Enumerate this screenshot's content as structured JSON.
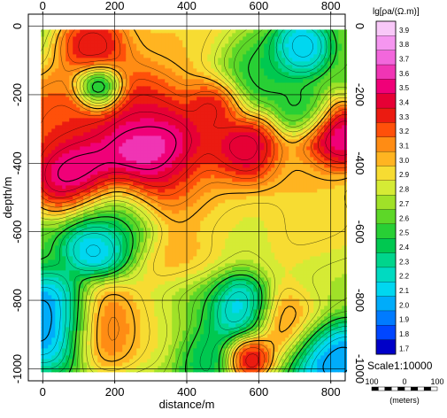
{
  "chart_data": {
    "type": "heatmap",
    "title": "",
    "xlabel": "distance/m",
    "ylabel": "depth/m",
    "x_ticks": [
      0,
      200,
      400,
      600,
      800
    ],
    "y_ticks": [
      0,
      -200,
      -400,
      -600,
      -800,
      -1000
    ],
    "xlim": [
      -40,
      840
    ],
    "ylim": [
      -1035,
      35
    ],
    "grid": true,
    "data_extent": {
      "x": [
        -5,
        845
      ],
      "y": [
        -10,
        -1010
      ]
    },
    "colorbar": {
      "title": "lg[ρa/(Ω.m)]",
      "min": 1.7,
      "max": 3.9,
      "step": 0.1,
      "labels": [
        "3.9",
        "3.8",
        "3.7",
        "3.6",
        "3.5",
        "3.4",
        "3.3",
        "3.2",
        "3.1",
        "3.0",
        "2.9",
        "2.8",
        "2.7",
        "2.6",
        "2.5",
        "2.4",
        "2.3",
        "2.2",
        "2.1",
        "2.0",
        "1.9",
        "1.8",
        "1.7"
      ]
    },
    "values_description_axis": "x in meters, y = depth in meters, value = lg resistivity",
    "peaks": [
      {
        "x": 400,
        "y": -30,
        "value": 3.0,
        "spread": 220
      },
      {
        "x": 150,
        "y": -60,
        "value": 3.5,
        "spread": 90
      },
      {
        "x": 700,
        "y": -60,
        "value": 1.9,
        "spread": 70
      },
      {
        "x": 160,
        "y": -180,
        "value": 1.8,
        "spread": 60
      },
      {
        "x": 580,
        "y": -110,
        "value": 2.3,
        "spread": 110
      },
      {
        "x": 60,
        "y": -280,
        "value": 3.3,
        "spread": 140
      },
      {
        "x": 470,
        "y": -220,
        "value": 3.5,
        "spread": 70
      },
      {
        "x": 270,
        "y": -220,
        "value": 3.4,
        "spread": 120
      },
      {
        "x": 720,
        "y": -260,
        "value": 2.4,
        "spread": 70
      },
      {
        "x": 300,
        "y": -380,
        "value": 3.9,
        "spread": 160
      },
      {
        "x": 100,
        "y": -430,
        "value": 3.8,
        "spread": 110
      },
      {
        "x": 560,
        "y": -380,
        "value": 3.7,
        "spread": 100
      },
      {
        "x": 800,
        "y": -330,
        "value": 3.7,
        "spread": 90
      },
      {
        "x": 700,
        "y": -420,
        "value": 3.0,
        "spread": 110
      },
      {
        "x": 420,
        "y": -480,
        "value": 3.1,
        "spread": 150
      },
      {
        "x": 200,
        "y": -560,
        "value": 2.3,
        "spread": 130
      },
      {
        "x": 150,
        "y": -640,
        "value": 1.9,
        "spread": 70
      },
      {
        "x": 520,
        "y": -560,
        "value": 2.8,
        "spread": 150
      },
      {
        "x": 750,
        "y": -600,
        "value": 3.0,
        "spread": 150
      },
      {
        "x": 380,
        "y": -680,
        "value": 3.1,
        "spread": 110
      },
      {
        "x": 30,
        "y": -860,
        "value": 1.8,
        "spread": 110
      },
      {
        "x": 170,
        "y": -870,
        "value": 3.3,
        "spread": 110
      },
      {
        "x": 320,
        "y": -860,
        "value": 2.9,
        "spread": 120
      },
      {
        "x": 540,
        "y": -820,
        "value": 1.9,
        "spread": 90
      },
      {
        "x": 460,
        "y": -940,
        "value": 2.3,
        "spread": 90
      },
      {
        "x": 560,
        "y": -960,
        "value": 3.6,
        "spread": 60
      },
      {
        "x": 680,
        "y": -860,
        "value": 3.2,
        "spread": 110
      },
      {
        "x": 790,
        "y": -950,
        "value": 1.8,
        "spread": 100
      },
      {
        "x": 800,
        "y": -740,
        "value": 2.7,
        "spread": 120
      },
      {
        "x": 420,
        "y": -800,
        "value": 2.5,
        "spread": 100
      }
    ],
    "background_value": 2.6,
    "scale_bar": {
      "label": "Scale1:10000",
      "tick_labels": [
        "100",
        "0",
        "100"
      ],
      "unit": "(meters)"
    }
  }
}
